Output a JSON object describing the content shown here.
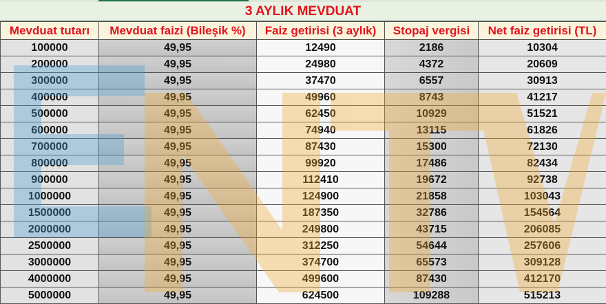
{
  "title": "3 AYLIK MEVDUAT",
  "headers": [
    "Mevduat tutarı",
    "Mevduat faizi (Bileşik %)",
    "Faiz getirisi (3 aylık)",
    "Stopaj vergisi",
    "Net faiz getirisi (TL)"
  ],
  "rows": [
    [
      "100000",
      "49,95",
      "12490",
      "2186",
      "10304"
    ],
    [
      "200000",
      "49,95",
      "24980",
      "4372",
      "20609"
    ],
    [
      "300000",
      "49,95",
      "37470",
      "6557",
      "30913"
    ],
    [
      "400000",
      "49,95",
      "49960",
      "8743",
      "41217"
    ],
    [
      "500000",
      "49,95",
      "62450",
      "10929",
      "51521"
    ],
    [
      "600000",
      "49,95",
      "74940",
      "13115",
      "61826"
    ],
    [
      "700000",
      "49,95",
      "87430",
      "15300",
      "72130"
    ],
    [
      "800000",
      "49,95",
      "99920",
      "17486",
      "82434"
    ],
    [
      "900000",
      "49,95",
      "112410",
      "19672",
      "92738"
    ],
    [
      "1000000",
      "49,95",
      "124900",
      "21858",
      "103043"
    ],
    [
      "1500000",
      "49,95",
      "187350",
      "32786",
      "154564"
    ],
    [
      "2000000",
      "49,95",
      "249800",
      "43715",
      "206085"
    ],
    [
      "2500000",
      "49,95",
      "312250",
      "54644",
      "257606"
    ],
    [
      "3000000",
      "49,95",
      "374700",
      "65573",
      "309128"
    ],
    [
      "4000000",
      "49,95",
      "499600",
      "87430",
      "412170"
    ],
    [
      "5000000",
      "49,95",
      "624500",
      "109288",
      "515213"
    ]
  ],
  "watermark": {
    "text": "NTV",
    "colors": {
      "e": "#4a9fd4",
      "ntv": "#f0a830"
    }
  },
  "colors": {
    "header_text": "#e0141e",
    "title_bg": "#e8f1e2",
    "header_bg": "#fbf4dc"
  }
}
